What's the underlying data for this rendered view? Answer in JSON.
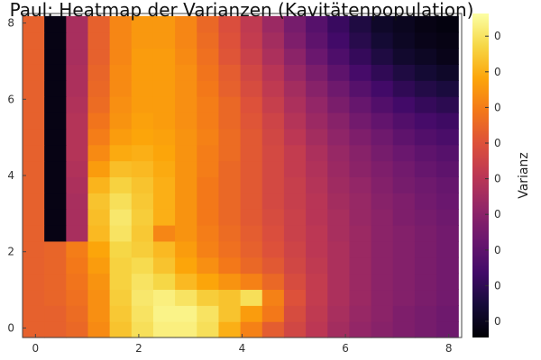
{
  "chart_data": {
    "type": "heatmap",
    "title": "Paul: Heatmap der Varianzen (Kavitätenpopulation)",
    "xlabel": "",
    "ylabel": "",
    "colorbar_label": "Varianz",
    "colormap": "inferno",
    "x_range": [
      -0.25,
      8.25
    ],
    "y_range": [
      -0.25,
      8.25
    ],
    "cell_size": 0.4217,
    "x_ticks": [
      0,
      2,
      4,
      6,
      8
    ],
    "y_ticks": [
      0,
      2,
      4,
      6,
      8
    ],
    "x_tick_labels": [
      "0",
      "2",
      "4",
      "6",
      "8"
    ],
    "y_tick_labels": [
      "0",
      "2",
      "4",
      "6",
      "8"
    ],
    "colorbar_ticks": [
      0.05,
      0.16,
      0.27,
      0.38,
      0.49,
      0.6,
      0.71,
      0.82,
      0.93
    ],
    "colorbar_tick_labels": [
      "0",
      "0",
      "0",
      "0",
      "0",
      "0",
      "0",
      "0",
      "0"
    ],
    "grid": false,
    "values": [
      [
        0.64,
        0.64,
        0.66,
        0.74,
        0.86,
        0.92,
        0.96,
        0.96,
        0.92,
        0.82,
        0.72,
        0.63,
        0.56,
        0.5,
        0.44,
        0.4,
        0.37,
        0.35,
        0.33,
        0.31
      ],
      [
        0.64,
        0.64,
        0.67,
        0.75,
        0.87,
        0.93,
        0.97,
        0.97,
        0.93,
        0.86,
        0.78,
        0.7,
        0.58,
        0.51,
        0.45,
        0.41,
        0.38,
        0.35,
        0.33,
        0.31
      ],
      [
        0.64,
        0.65,
        0.68,
        0.75,
        0.88,
        0.94,
        0.96,
        0.93,
        0.88,
        0.86,
        0.92,
        0.72,
        0.6,
        0.52,
        0.46,
        0.42,
        0.38,
        0.36,
        0.34,
        0.32
      ],
      [
        0.64,
        0.65,
        0.69,
        0.76,
        0.89,
        0.93,
        0.9,
        0.84,
        0.8,
        0.76,
        0.72,
        0.66,
        0.58,
        0.52,
        0.46,
        0.42,
        0.38,
        0.36,
        0.34,
        0.32
      ],
      [
        0.64,
        0.65,
        0.7,
        0.78,
        0.89,
        0.91,
        0.86,
        0.8,
        0.75,
        0.7,
        0.66,
        0.62,
        0.56,
        0.51,
        0.46,
        0.42,
        0.38,
        0.36,
        0.34,
        0.32
      ],
      [
        0.64,
        0.65,
        0.71,
        0.8,
        0.9,
        0.88,
        0.84,
        0.78,
        0.72,
        0.68,
        0.64,
        0.6,
        0.55,
        0.5,
        0.46,
        0.42,
        0.38,
        0.36,
        0.34,
        0.32
      ],
      [
        0.64,
        0.03,
        0.45,
        0.84,
        0.93,
        0.87,
        0.73,
        0.76,
        0.71,
        0.67,
        0.63,
        0.59,
        0.54,
        0.5,
        0.45,
        0.42,
        0.38,
        0.36,
        0.34,
        0.32
      ],
      [
        0.64,
        0.03,
        0.45,
        0.85,
        0.94,
        0.88,
        0.82,
        0.76,
        0.7,
        0.66,
        0.62,
        0.58,
        0.54,
        0.49,
        0.45,
        0.41,
        0.38,
        0.35,
        0.33,
        0.31
      ],
      [
        0.64,
        0.03,
        0.45,
        0.86,
        0.92,
        0.87,
        0.82,
        0.76,
        0.7,
        0.66,
        0.62,
        0.57,
        0.53,
        0.49,
        0.44,
        0.41,
        0.37,
        0.35,
        0.32,
        0.3
      ],
      [
        0.64,
        0.03,
        0.46,
        0.83,
        0.89,
        0.86,
        0.82,
        0.76,
        0.7,
        0.66,
        0.62,
        0.57,
        0.53,
        0.48,
        0.43,
        0.4,
        0.36,
        0.33,
        0.31,
        0.29
      ],
      [
        0.64,
        0.03,
        0.47,
        0.78,
        0.85,
        0.84,
        0.81,
        0.76,
        0.71,
        0.66,
        0.62,
        0.57,
        0.52,
        0.47,
        0.42,
        0.38,
        0.35,
        0.32,
        0.29,
        0.27
      ],
      [
        0.64,
        0.03,
        0.48,
        0.74,
        0.81,
        0.82,
        0.8,
        0.76,
        0.71,
        0.67,
        0.62,
        0.57,
        0.52,
        0.46,
        0.41,
        0.37,
        0.33,
        0.3,
        0.27,
        0.25
      ],
      [
        0.64,
        0.03,
        0.48,
        0.71,
        0.78,
        0.8,
        0.79,
        0.76,
        0.72,
        0.67,
        0.62,
        0.56,
        0.5,
        0.44,
        0.39,
        0.35,
        0.31,
        0.27,
        0.24,
        0.22
      ],
      [
        0.64,
        0.03,
        0.48,
        0.69,
        0.76,
        0.79,
        0.78,
        0.75,
        0.71,
        0.66,
        0.61,
        0.55,
        0.48,
        0.42,
        0.37,
        0.32,
        0.28,
        0.24,
        0.21,
        0.19
      ],
      [
        0.64,
        0.03,
        0.47,
        0.67,
        0.75,
        0.78,
        0.78,
        0.75,
        0.71,
        0.66,
        0.6,
        0.53,
        0.46,
        0.4,
        0.34,
        0.29,
        0.24,
        0.2,
        0.17,
        0.15
      ],
      [
        0.64,
        0.03,
        0.46,
        0.66,
        0.74,
        0.78,
        0.78,
        0.75,
        0.7,
        0.64,
        0.58,
        0.51,
        0.44,
        0.37,
        0.31,
        0.25,
        0.2,
        0.16,
        0.13,
        0.11
      ],
      [
        0.64,
        0.03,
        0.46,
        0.65,
        0.74,
        0.78,
        0.78,
        0.75,
        0.69,
        0.63,
        0.56,
        0.49,
        0.41,
        0.34,
        0.27,
        0.21,
        0.16,
        0.12,
        0.09,
        0.07
      ],
      [
        0.64,
        0.03,
        0.45,
        0.64,
        0.73,
        0.78,
        0.78,
        0.74,
        0.68,
        0.61,
        0.54,
        0.46,
        0.38,
        0.3,
        0.23,
        0.17,
        0.12,
        0.08,
        0.06,
        0.04
      ],
      [
        0.64,
        0.03,
        0.45,
        0.64,
        0.73,
        0.77,
        0.77,
        0.73,
        0.67,
        0.6,
        0.52,
        0.44,
        0.35,
        0.27,
        0.2,
        0.14,
        0.09,
        0.06,
        0.04,
        0.03
      ],
      [
        0.64,
        0.03,
        0.45,
        0.64,
        0.73,
        0.77,
        0.77,
        0.73,
        0.66,
        0.59,
        0.51,
        0.42,
        0.33,
        0.25,
        0.18,
        0.12,
        0.07,
        0.05,
        0.03,
        0.02
      ]
    ]
  }
}
